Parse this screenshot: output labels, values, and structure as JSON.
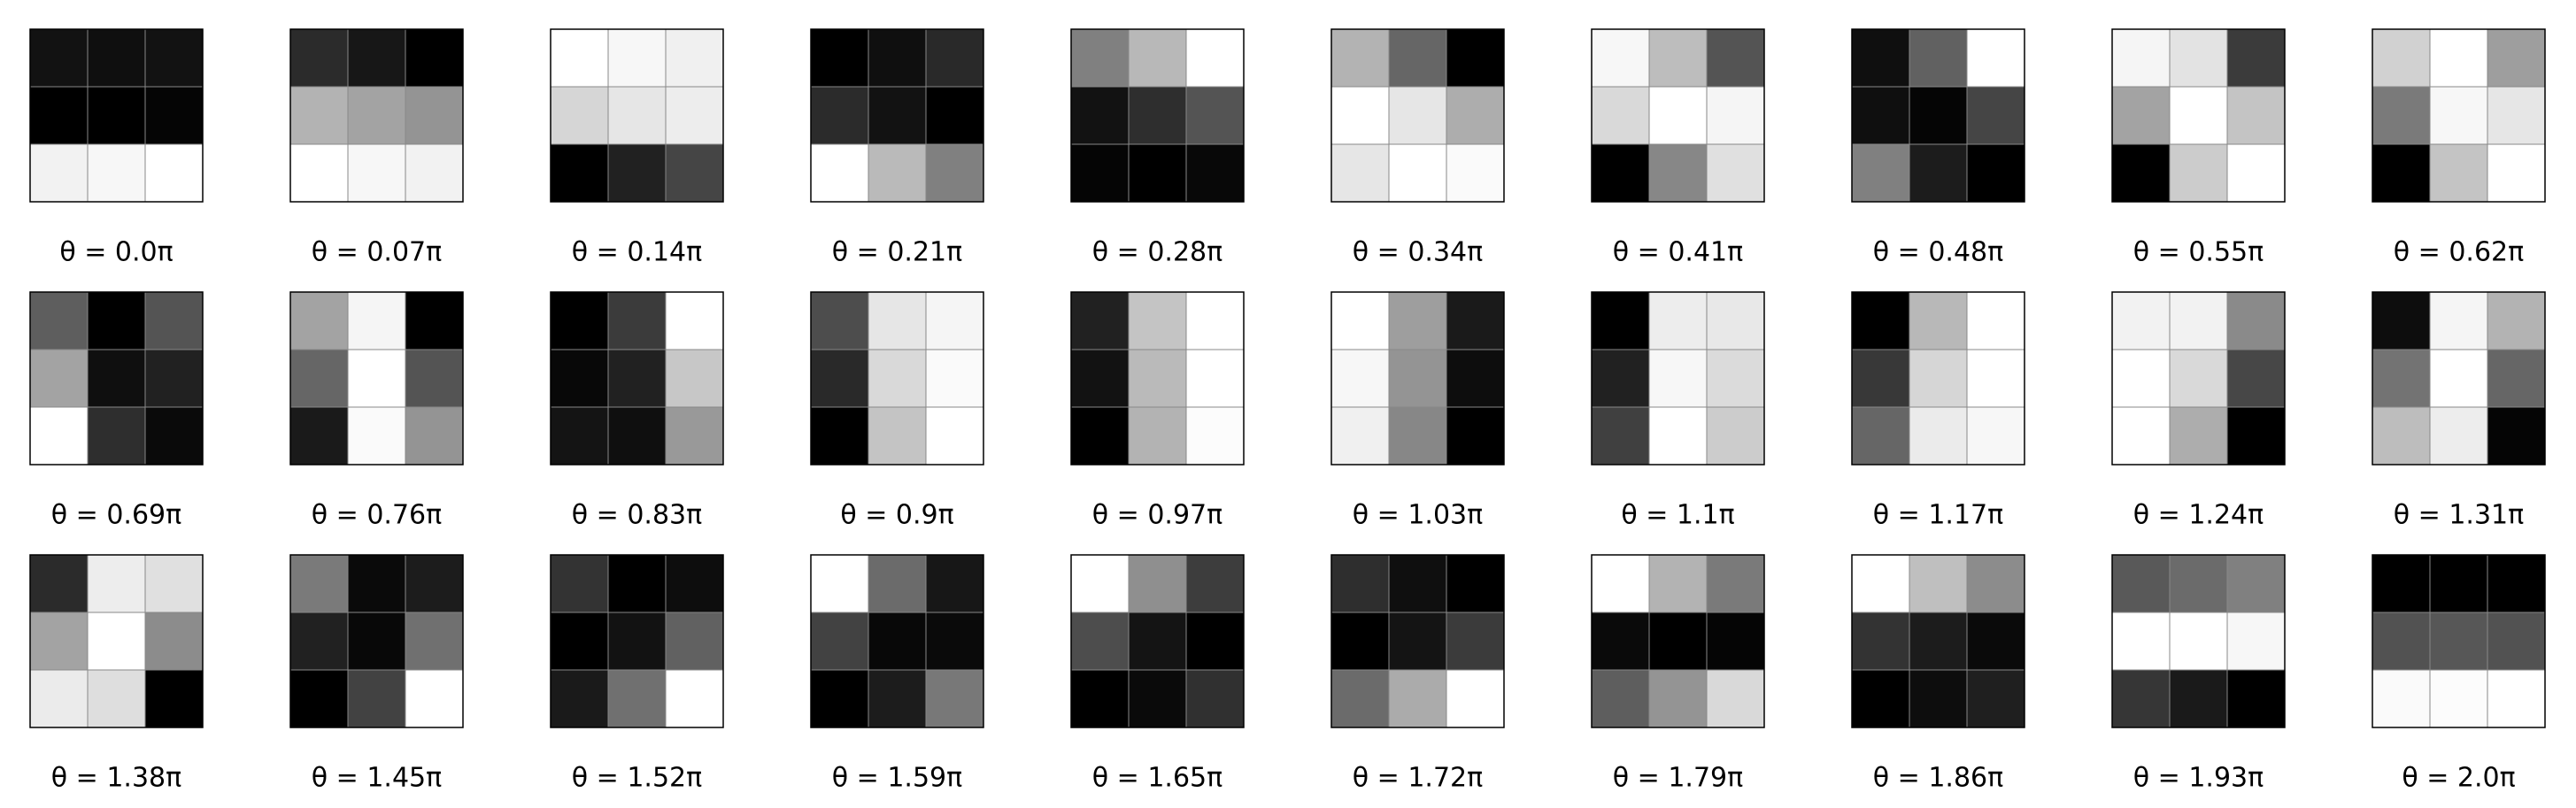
{
  "chart_data": [
    {
      "type": "heatmap",
      "cmap": "gray",
      "title": "θ = 0.0π",
      "values": [
        [
          0.07,
          0.06,
          0.07
        ],
        [
          0,
          0,
          0.02
        ],
        [
          0.95,
          0.97,
          1
        ]
      ]
    },
    {
      "type": "heatmap",
      "cmap": "gray",
      "title": "θ = 0.07π",
      "values": [
        [
          0.17,
          0.09,
          0
        ],
        [
          0.7,
          0.64,
          0.58
        ],
        [
          1,
          0.97,
          0.95
        ]
      ]
    },
    {
      "type": "heatmap",
      "cmap": "gray",
      "title": "θ = 0.14π",
      "values": [
        [
          1,
          0.97,
          0.94
        ],
        [
          0.84,
          0.9,
          0.93
        ],
        [
          0,
          0.13,
          0.27
        ]
      ]
    },
    {
      "type": "heatmap",
      "cmap": "gray",
      "title": "θ = 0.21π",
      "values": [
        [
          0,
          0.06,
          0.16
        ],
        [
          0.17,
          0.07,
          0
        ],
        [
          1,
          0.73,
          0.5
        ]
      ]
    },
    {
      "type": "heatmap",
      "cmap": "gray",
      "title": "θ = 0.28π",
      "values": [
        [
          0.5,
          0.72,
          1
        ],
        [
          0.07,
          0.18,
          0.33
        ],
        [
          0.02,
          0,
          0.03
        ]
      ]
    },
    {
      "type": "heatmap",
      "cmap": "gray",
      "title": "θ = 0.34π",
      "values": [
        [
          0.7,
          0.4,
          0
        ],
        [
          1,
          0.9,
          0.68
        ],
        [
          0.9,
          1,
          0.98
        ]
      ]
    },
    {
      "type": "heatmap",
      "cmap": "gray",
      "title": "θ = 0.41π",
      "values": [
        [
          0.97,
          0.74,
          0.33
        ],
        [
          0.85,
          1,
          0.96
        ],
        [
          0,
          0.53,
          0.88
        ]
      ]
    },
    {
      "type": "heatmap",
      "cmap": "gray",
      "title": "θ = 0.48π",
      "values": [
        [
          0.06,
          0.38,
          1
        ],
        [
          0.06,
          0.02,
          0.27
        ],
        [
          0.5,
          0.11,
          0
        ]
      ]
    },
    {
      "type": "heatmap",
      "cmap": "gray",
      "title": "θ = 0.55π",
      "values": [
        [
          0.96,
          0.89,
          0.23
        ],
        [
          0.64,
          1,
          0.77
        ],
        [
          0,
          0.8,
          1
        ]
      ]
    },
    {
      "type": "heatmap",
      "cmap": "gray",
      "title": "θ = 0.62π",
      "values": [
        [
          0.82,
          1,
          0.62
        ],
        [
          0.48,
          0.97,
          0.9
        ],
        [
          0,
          0.77,
          1
        ]
      ]
    },
    {
      "type": "heatmap",
      "cmap": "gray",
      "title": "θ = 0.69π",
      "values": [
        [
          0.37,
          0,
          0.33
        ],
        [
          0.64,
          0.06,
          0.13
        ],
        [
          1,
          0.18,
          0.04
        ]
      ]
    },
    {
      "type": "heatmap",
      "cmap": "gray",
      "title": "θ = 0.76π",
      "values": [
        [
          0.64,
          0.96,
          0
        ],
        [
          0.4,
          1,
          0.33
        ],
        [
          0.1,
          0.98,
          0.58
        ]
      ]
    },
    {
      "type": "heatmap",
      "cmap": "gray",
      "title": "θ = 0.83π",
      "values": [
        [
          0,
          0.23,
          1
        ],
        [
          0.03,
          0.13,
          0.78
        ],
        [
          0.08,
          0.06,
          0.6
        ]
      ]
    },
    {
      "type": "heatmap",
      "cmap": "gray",
      "title": "θ = 0.9π",
      "values": [
        [
          0.3,
          0.9,
          0.96
        ],
        [
          0.16,
          0.85,
          0.98
        ],
        [
          0,
          0.77,
          1
        ]
      ]
    },
    {
      "type": "heatmap",
      "cmap": "gray",
      "title": "θ = 0.97π",
      "values": [
        [
          0.13,
          0.77,
          1
        ],
        [
          0.07,
          0.73,
          1
        ],
        [
          0,
          0.7,
          0.99
        ]
      ]
    },
    {
      "type": "heatmap",
      "cmap": "gray",
      "title": "θ = 1.03π",
      "values": [
        [
          1,
          0.62,
          0.1
        ],
        [
          0.97,
          0.58,
          0.05
        ],
        [
          0.94,
          0.53,
          0
        ]
      ]
    },
    {
      "type": "heatmap",
      "cmap": "gray",
      "title": "θ = 1.1π",
      "values": [
        [
          0,
          0.93,
          0.91
        ],
        [
          0.13,
          0.97,
          0.86
        ],
        [
          0.25,
          1,
          0.8
        ]
      ]
    },
    {
      "type": "heatmap",
      "cmap": "gray",
      "title": "θ = 1.17π",
      "values": [
        [
          0,
          0.72,
          1
        ],
        [
          0.22,
          0.84,
          1
        ],
        [
          0.4,
          0.92,
          0.97
        ]
      ]
    },
    {
      "type": "heatmap",
      "cmap": "gray",
      "title": "θ = 1.24π",
      "values": [
        [
          0.95,
          0.95,
          0.54
        ],
        [
          1,
          0.85,
          0.28
        ],
        [
          1,
          0.68,
          0
        ]
      ]
    },
    {
      "type": "heatmap",
      "cmap": "gray",
      "title": "θ = 1.31π",
      "values": [
        [
          0.05,
          0.96,
          0.7
        ],
        [
          0.45,
          1,
          0.4
        ],
        [
          0.74,
          0.93,
          0.02
        ]
      ]
    },
    {
      "type": "heatmap",
      "cmap": "gray",
      "title": "θ = 1.38π",
      "values": [
        [
          0.17,
          0.93,
          0.88
        ],
        [
          0.64,
          1,
          0.55
        ],
        [
          0.92,
          0.87,
          0
        ]
      ]
    },
    {
      "type": "heatmap",
      "cmap": "gray",
      "title": "θ = 1.45π",
      "values": [
        [
          0.48,
          0.04,
          0.11
        ],
        [
          0.13,
          0.03,
          0.44
        ],
        [
          0,
          0.26,
          1
        ]
      ]
    },
    {
      "type": "heatmap",
      "cmap": "gray",
      "title": "θ = 1.52π",
      "values": [
        [
          0.2,
          0,
          0.05
        ],
        [
          0,
          0.07,
          0.38
        ],
        [
          0.1,
          0.44,
          1
        ]
      ]
    },
    {
      "type": "heatmap",
      "cmap": "gray",
      "title": "θ = 1.59π",
      "values": [
        [
          1,
          0.42,
          0.09
        ],
        [
          0.26,
          0.03,
          0.04
        ],
        [
          0,
          0.11,
          0.47
        ]
      ]
    },
    {
      "type": "heatmap",
      "cmap": "gray",
      "title": "θ = 1.65π",
      "values": [
        [
          1,
          0.56,
          0.24
        ],
        [
          0.3,
          0.08,
          0
        ],
        [
          0,
          0.04,
          0.19
        ]
      ]
    },
    {
      "type": "heatmap",
      "cmap": "gray",
      "title": "θ = 1.72π",
      "values": [
        [
          0.18,
          0.06,
          0
        ],
        [
          0,
          0.08,
          0.23
        ],
        [
          0.42,
          0.67,
          1
        ]
      ]
    },
    {
      "type": "heatmap",
      "cmap": "gray",
      "title": "θ = 1.79π",
      "values": [
        [
          1,
          0.7,
          0.48
        ],
        [
          0.04,
          0,
          0.02
        ],
        [
          0.37,
          0.58,
          0.85
        ]
      ]
    },
    {
      "type": "heatmap",
      "cmap": "gray",
      "title": "θ = 1.86π",
      "values": [
        [
          1,
          0.75,
          0.55
        ],
        [
          0.2,
          0.11,
          0.04
        ],
        [
          0,
          0.05,
          0.12
        ]
      ]
    },
    {
      "type": "heatmap",
      "cmap": "gray",
      "title": "θ = 1.93π",
      "values": [
        [
          0.35,
          0.42,
          0.5
        ],
        [
          1,
          1,
          0.97
        ],
        [
          0.21,
          0.1,
          0
        ]
      ]
    },
    {
      "type": "heatmap",
      "cmap": "gray",
      "title": "θ = 2.0π",
      "values": [
        [
          0,
          0,
          0
        ],
        [
          0.32,
          0.34,
          0.32
        ],
        [
          0.98,
          0.99,
          1
        ]
      ]
    }
  ]
}
